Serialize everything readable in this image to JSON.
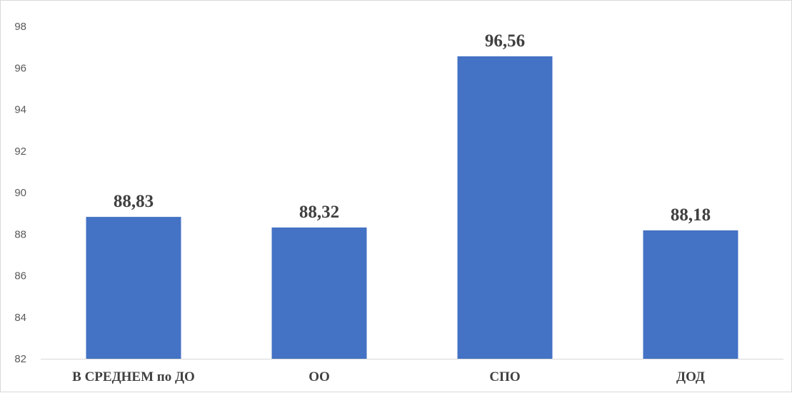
{
  "chart_data": {
    "type": "bar",
    "categories": [
      "В СРЕДНЕМ по ДО",
      "ОО",
      "СПО",
      "ДОД"
    ],
    "values": [
      88.83,
      88.32,
      96.56,
      88.18
    ],
    "data_labels": [
      "88,83",
      "88,32",
      "96,56",
      "88,18"
    ],
    "title": "",
    "xlabel": "",
    "ylabel": "",
    "ylim": [
      82,
      98
    ],
    "yticks": [
      82,
      84,
      86,
      88,
      90,
      92,
      94,
      96,
      98
    ],
    "grid": false,
    "legend": "none",
    "bar_color": "#4472C4",
    "label_color": "#404040",
    "axis_color": "#D9D9D9"
  }
}
